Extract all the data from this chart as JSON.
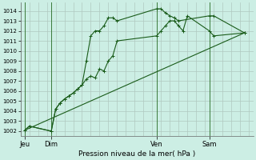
{
  "bg_color": "#cceee4",
  "grid_color": "#b0c8c0",
  "line_color": "#1a5c1a",
  "xlabel": "Pression niveau de la mer( hPa )",
  "ylim": [
    1001.5,
    1014.8
  ],
  "yticks": [
    1002,
    1003,
    1004,
    1005,
    1006,
    1007,
    1008,
    1009,
    1010,
    1011,
    1012,
    1013,
    1014
  ],
  "xtick_labels": [
    "Jeu",
    "Dim",
    "Ven",
    "Sam"
  ],
  "xtick_positions": [
    0,
    12,
    60,
    84
  ],
  "xlim": [
    -2,
    104
  ],
  "vline_positions": [
    0,
    12,
    60,
    84
  ],
  "line1_x": [
    0,
    2,
    12,
    14,
    16,
    18,
    20,
    22,
    24,
    26,
    28,
    30,
    32,
    34,
    36,
    38,
    40,
    42,
    60,
    62,
    64,
    66,
    68,
    70,
    72,
    74,
    84,
    86,
    100
  ],
  "line1_y": [
    1002.1,
    1002.5,
    1002.0,
    1004.2,
    1004.8,
    1005.2,
    1005.5,
    1005.8,
    1006.2,
    1006.6,
    1007.2,
    1007.5,
    1007.3,
    1008.2,
    1008.0,
    1009.0,
    1009.5,
    1011.0,
    1011.5,
    1012.0,
    1012.5,
    1013.0,
    1013.0,
    1012.5,
    1012.0,
    1013.5,
    1012.0,
    1011.5,
    1011.8
  ],
  "line2_x": [
    0,
    2,
    12,
    14,
    16,
    18,
    20,
    22,
    24,
    26,
    28,
    30,
    32,
    34,
    36,
    38,
    40,
    42,
    60,
    62,
    64,
    66,
    68,
    70,
    84,
    86,
    100
  ],
  "line2_y": [
    1002.1,
    1002.5,
    1002.0,
    1004.2,
    1004.8,
    1005.2,
    1005.5,
    1005.8,
    1006.2,
    1006.6,
    1009.0,
    1011.5,
    1012.0,
    1012.0,
    1012.5,
    1013.3,
    1013.3,
    1013.0,
    1014.2,
    1014.2,
    1013.8,
    1013.5,
    1013.3,
    1013.0,
    1013.5,
    1013.5,
    1011.8
  ],
  "line3_x": [
    0,
    100
  ],
  "line3_y": [
    1002.1,
    1011.8
  ]
}
